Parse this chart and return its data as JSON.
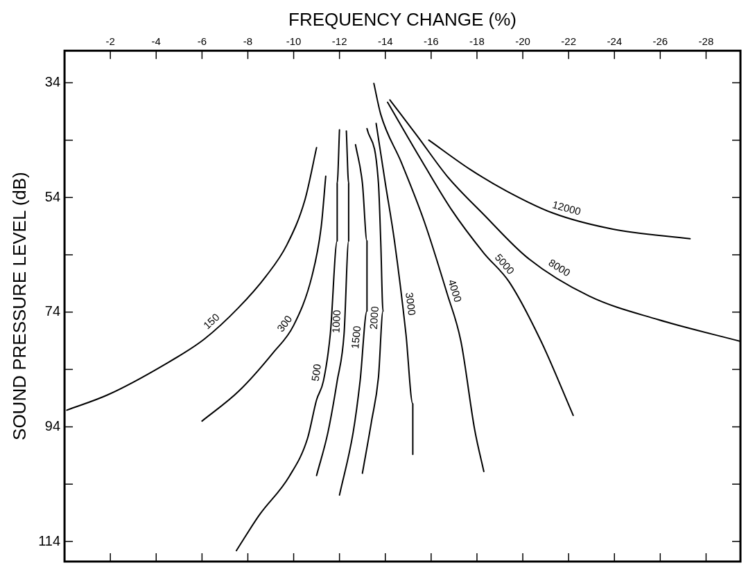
{
  "chart_data": {
    "type": "line",
    "xlabel": "FREQUENCY CHANGE (%)",
    "ylabel": "SOUND PRESSURE LEVEL (dB)",
    "xlim": [
      0,
      -29.5
    ],
    "xticks": [
      -2,
      -4,
      -6,
      -8,
      -10,
      -12,
      -14,
      -16,
      -18,
      -20,
      -22,
      -24,
      -26,
      -28
    ],
    "ylim": [
      117.5,
      28.4
    ],
    "yticks": [
      34,
      {
        "value": 44,
        "label": null
      },
      54,
      {
        "value": 64,
        "label": null
      },
      74,
      {
        "value": 84,
        "label": null
      },
      94,
      {
        "value": 104,
        "label": null
      },
      114
    ],
    "grid": false,
    "legend": false,
    "marker": "none",
    "series": [
      {
        "name": "150",
        "color": "#000000",
        "x": [
          -0.1,
          -1.9,
          -4.3,
          -6.1,
          -7.6,
          -8.8,
          -9.7,
          -10.5,
          -11.0
        ],
        "values": [
          91.1,
          88.4,
          83.3,
          78.7,
          73.2,
          67.7,
          62.3,
          54.3,
          45.3
        ]
      },
      {
        "name": "300",
        "color": "#000000",
        "x": [
          -6.0,
          -7.6,
          -9.1,
          -10.0,
          -10.8,
          -11.2,
          -11.4
        ],
        "values": [
          93.0,
          87.8,
          81.1,
          76.3,
          67.7,
          59.2,
          50.3
        ]
      },
      {
        "name": "500",
        "color": "#000000",
        "x": [
          -7.5,
          -8.5,
          -9.8,
          -10.6,
          -11.0,
          -11.3,
          -11.6,
          -11.9,
          -11.9,
          -12.0
        ],
        "values": [
          115.6,
          109.4,
          102.7,
          96.1,
          89.3,
          86.0,
          77.8,
          61.6,
          51.5,
          42.2
        ]
      },
      {
        "name": "1000",
        "color": "#000000",
        "x": [
          -11.0,
          -11.5,
          -11.9,
          -12.2,
          -12.4,
          -12.4,
          -12.3
        ],
        "values": [
          102.5,
          94.9,
          86.0,
          77.8,
          61.6,
          51.5,
          42.4
        ]
      },
      {
        "name": "1500",
        "color": "#000000",
        "x": [
          -12.0,
          -12.6,
          -12.9,
          -13.2,
          -13.2,
          -13.0,
          -12.7
        ],
        "values": [
          105.9,
          94.9,
          86.0,
          73.8,
          61.6,
          51.5,
          44.8
        ]
      },
      {
        "name": "2000",
        "color": "#000000",
        "x": [
          -13.0,
          -13.4,
          -13.7,
          -13.9,
          -13.8,
          -13.7,
          -13.2
        ],
        "values": [
          102.1,
          93.0,
          85.4,
          73.8,
          61.6,
          51.5,
          42.0
        ]
      },
      {
        "name": "3000",
        "color": "#000000",
        "x": [
          -15.2,
          -15.2,
          -14.9,
          -14.4,
          -14.0,
          -13.6
        ],
        "values": [
          98.8,
          90.0,
          77.8,
          61.6,
          51.5,
          41.1
        ]
      },
      {
        "name": "4000",
        "color": "#000000",
        "x": [
          -18.3,
          -17.9,
          -17.3,
          -16.7,
          -15.7,
          -14.7,
          -13.8,
          -13.5
        ],
        "values": [
          101.8,
          94.5,
          79.1,
          70.8,
          58.2,
          47.9,
          39.5,
          34.1
        ]
      },
      {
        "name": "5000",
        "color": "#000000",
        "x": [
          -22.2,
          -20.8,
          -19.4,
          -18.3,
          -16.9,
          -15.5,
          -14.1
        ],
        "values": [
          92.0,
          79.1,
          68.7,
          63.7,
          56.2,
          47.0,
          37.4
        ]
      },
      {
        "name": "8000",
        "color": "#000000",
        "x": [
          -29.5,
          -25.9,
          -22.9,
          -20.2,
          -18.3,
          -16.7,
          -15.4,
          -14.2
        ],
        "values": [
          79.1,
          75.3,
          71.2,
          64.5,
          57.0,
          50.3,
          43.3,
          37.0
        ]
      },
      {
        "name": "12000",
        "color": "#000000",
        "x": [
          -27.3,
          -23.9,
          -21.3,
          -19.3,
          -17.7,
          -15.9
        ],
        "values": [
          61.2,
          59.5,
          56.7,
          52.9,
          49.1,
          44.0
        ]
      }
    ]
  }
}
